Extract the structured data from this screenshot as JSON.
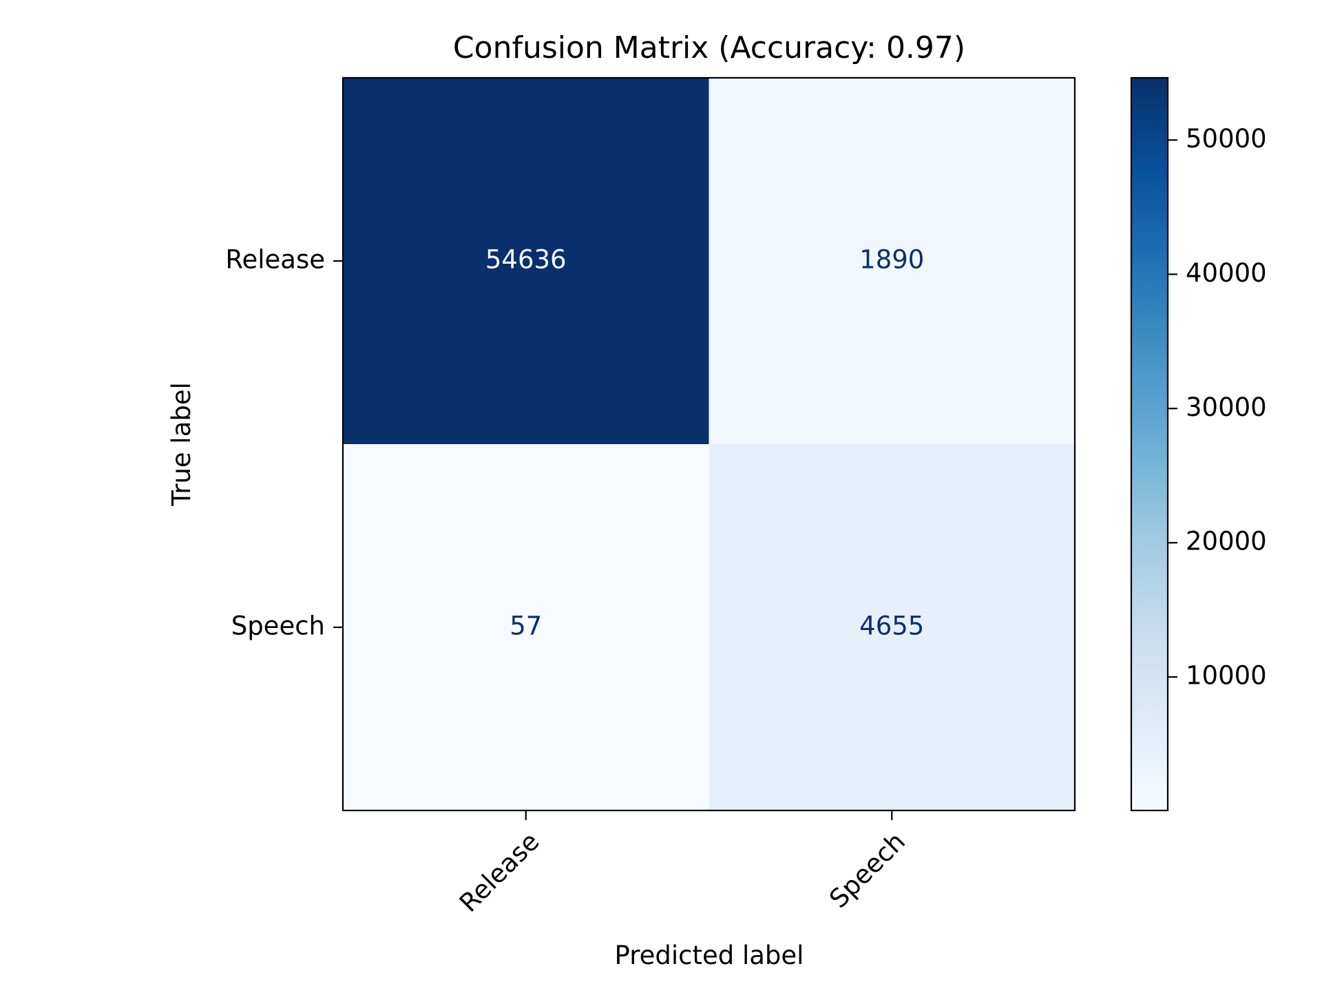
{
  "chart_data": {
    "type": "heatmap",
    "title": "Confusion Matrix (Accuracy: 0.97)",
    "xlabel": "Predicted label",
    "ylabel": "True label",
    "x_categories": [
      "Release",
      "Speech"
    ],
    "y_categories": [
      "Release",
      "Speech"
    ],
    "values": [
      [
        54636,
        1890
      ],
      [
        57,
        4655
      ]
    ],
    "colormap": "Blues",
    "color_range": [
      57,
      54636
    ],
    "colorbar": {
      "ticks": [
        10000,
        20000,
        30000,
        40000,
        50000
      ],
      "tick_labels": [
        "10000",
        "20000",
        "30000",
        "40000",
        "50000"
      ]
    },
    "x_tick_rotation": 45,
    "grid": false
  }
}
